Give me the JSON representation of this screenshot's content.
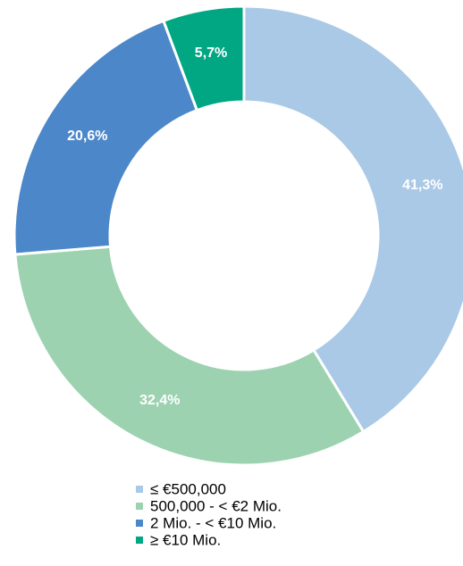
{
  "chart_data": {
    "type": "donut",
    "categories": [
      "≤ €500,000",
      "500,000 - < €2 Mio.",
      "2 Mio. -  < €10 Mio.",
      "≥ €10 Mio."
    ],
    "values": [
      41.3,
      32.4,
      20.6,
      5.7
    ],
    "value_labels": [
      "41,3%",
      "32,4%",
      "20,6%",
      "5,7%"
    ],
    "colors": [
      "#a9c9e6",
      "#9dd2b0",
      "#4c87c9",
      "#00a782"
    ],
    "legend": "bottom"
  }
}
